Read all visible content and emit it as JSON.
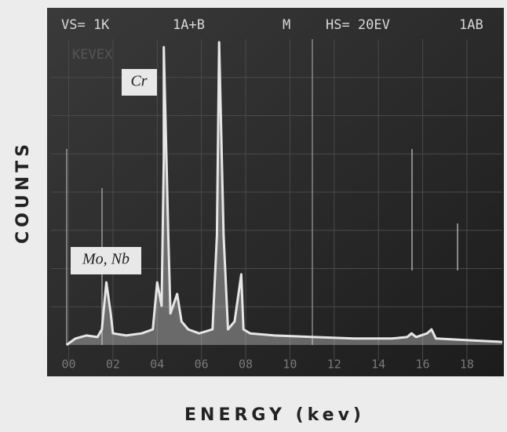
{
  "chart_data": {
    "type": "line",
    "screen_header": [
      "VS= 1K",
      "1A+B",
      "M",
      "HS= 20EV",
      "1AB"
    ],
    "screen_label": "KEVEX",
    "annotations": [
      "Cr",
      "Mo, Nb"
    ],
    "y_label": "COUNTS",
    "x_label": "ENERGY (kev)",
    "color": "#e6e6e6",
    "xlim": [
      -0.8,
      19.6
    ],
    "ylim": [
      0,
      100
    ],
    "xticks": [
      {
        "value": 0,
        "label": "00"
      },
      {
        "value": 2,
        "label": "02"
      },
      {
        "value": 4,
        "label": "04"
      },
      {
        "value": 6,
        "label": "06"
      },
      {
        "value": 8,
        "label": "08"
      },
      10,
      12,
      14,
      16,
      18
    ],
    "grid": true,
    "x": [
      -0.1,
      0.3,
      0.8,
      1.3,
      1.5,
      1.7,
      1.9,
      2.0,
      2.6,
      3.3,
      3.8,
      4.0,
      4.2,
      4.3,
      4.3,
      4.5,
      4.6,
      4.9,
      5.1,
      5.4,
      5.9,
      6.5,
      6.7,
      6.8,
      7.0,
      7.2,
      7.5,
      7.8,
      7.9,
      8.2,
      9.3,
      11.1,
      12.9,
      14.6,
      15.3,
      15.5,
      15.7,
      16.2,
      16.4,
      16.6,
      18.2,
      19.6
    ],
    "values": [
      0,
      2.1,
      3.1,
      2.6,
      5.1,
      20.5,
      10.3,
      3.8,
      3.1,
      3.8,
      5.1,
      20.5,
      12.8,
      61.5,
      97.4,
      35.9,
      10.3,
      16.7,
      7.7,
      5.1,
      3.8,
      5.1,
      35.9,
      99,
      35.9,
      5.1,
      7.7,
      23.1,
      5.1,
      3.8,
      3.1,
      2.6,
      2.1,
      2.1,
      2.6,
      3.8,
      2.6,
      3.8,
      5.1,
      2.1,
      1.5,
      1.0
    ]
  }
}
